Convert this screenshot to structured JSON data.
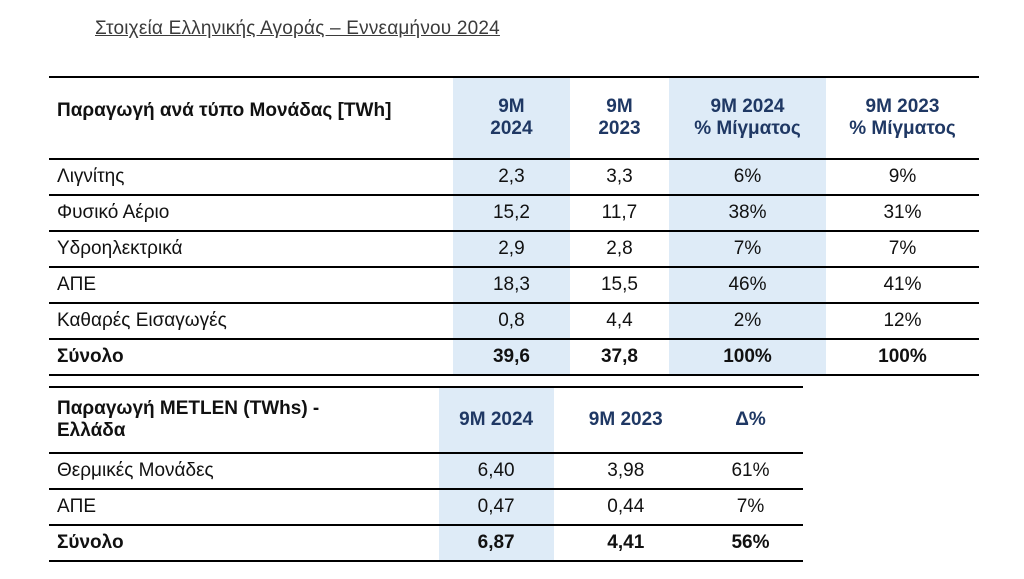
{
  "title": "Στοιχεία Ελληνικής Αγοράς – Εννεαμήνου 2024",
  "table1": {
    "header": {
      "label": "Παραγωγή ανά τύπο Μονάδας [TWh]",
      "col1_line1": "9M",
      "col1_line2": "2024",
      "col2_line1": "9M",
      "col2_line2": "2023",
      "col3_line1": "9M 2024",
      "col3_line2": "% Μίγματος",
      "col4_line1": "9M 2023",
      "col4_line2": "% Μίγματος"
    },
    "rows": [
      {
        "label": "Λιγνίτης",
        "v2024": "2,3",
        "v2023": "3,3",
        "mix2024": "6%",
        "mix2023": "9%"
      },
      {
        "label": "Φυσικό Αέριο",
        "v2024": "15,2",
        "v2023": "11,7",
        "mix2024": "38%",
        "mix2023": "31%"
      },
      {
        "label": "Υδροηλεκτρικά",
        "v2024": "2,9",
        "v2023": "2,8",
        "mix2024": "7%",
        "mix2023": "7%"
      },
      {
        "label": "ΑΠΕ",
        "v2024": "18,3",
        "v2023": "15,5",
        "mix2024": "46%",
        "mix2023": "41%"
      },
      {
        "label": "Καθαρές Εισαγωγές",
        "v2024": "0,8",
        "v2023": "4,4",
        "mix2024": "2%",
        "mix2023": "12%"
      },
      {
        "label": "Σύνολο",
        "v2024": "39,6",
        "v2023": "37,8",
        "mix2024": "100%",
        "mix2023": "100%"
      }
    ]
  },
  "table2": {
    "header": {
      "label_line1": "Παραγωγή METLEN (TWhs) -",
      "label_line2": "Ελλάδα",
      "col1": "9M 2024",
      "col2": "9M 2023",
      "col3": "Δ%"
    },
    "rows": [
      {
        "label": "Θερμικές Μονάδες",
        "v2024": "6,40",
        "v2023": "3,98",
        "delta": "61%"
      },
      {
        "label": "ΑΠΕ",
        "v2024": "0,47",
        "v2023": "0,44",
        "delta": "7%"
      },
      {
        "label": "Σύνολο",
        "v2024": "6,87",
        "v2023": "4,41",
        "delta": "56%"
      }
    ]
  },
  "colors": {
    "highlight": "#deebf7",
    "header_text": "#1f3864"
  }
}
